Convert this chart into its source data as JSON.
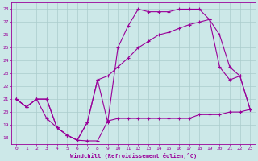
{
  "background_color": "#cce8e8",
  "grid_color": "#aacccc",
  "line_color": "#990099",
  "xlabel": "Windchill (Refroidissement éolien,°C)",
  "xlabel_color": "#990099",
  "ylim": [
    17.5,
    28.5
  ],
  "xlim": [
    -0.5,
    23.5
  ],
  "yticks": [
    18,
    19,
    20,
    21,
    22,
    23,
    24,
    25,
    26,
    27,
    28
  ],
  "xticks": [
    0,
    1,
    2,
    3,
    4,
    5,
    6,
    7,
    8,
    9,
    10,
    11,
    12,
    13,
    14,
    15,
    16,
    17,
    18,
    19,
    20,
    21,
    22,
    23
  ],
  "curve1_x": [
    0,
    1,
    2,
    3,
    4,
    5,
    6,
    7,
    8,
    9,
    10,
    11,
    12,
    13,
    14,
    15,
    16,
    17,
    18,
    19,
    20,
    21,
    22,
    23
  ],
  "curve1_y": [
    21.0,
    20.4,
    21.0,
    21.0,
    18.8,
    18.2,
    17.8,
    19.2,
    22.5,
    19.2,
    25.0,
    26.7,
    28.0,
    27.8,
    27.8,
    27.8,
    28.0,
    28.0,
    28.0,
    27.2,
    23.5,
    22.5,
    22.8,
    20.2
  ],
  "curve2_x": [
    0,
    1,
    2,
    3,
    4,
    5,
    6,
    7,
    8,
    9,
    10,
    11,
    12,
    13,
    14,
    15,
    16,
    17,
    18,
    19,
    20,
    21,
    22,
    23
  ],
  "curve2_y": [
    21.0,
    20.4,
    21.0,
    21.0,
    18.8,
    18.2,
    17.8,
    19.2,
    22.5,
    22.8,
    23.5,
    24.2,
    25.0,
    25.5,
    26.0,
    26.2,
    26.5,
    26.8,
    27.0,
    27.2,
    26.0,
    23.5,
    22.8,
    20.2
  ],
  "curve3_x": [
    0,
    1,
    2,
    3,
    4,
    5,
    6,
    7,
    8,
    9,
    10,
    11,
    12,
    13,
    14,
    15,
    16,
    17,
    18,
    19,
    20,
    21,
    22,
    23
  ],
  "curve3_y": [
    21.0,
    20.4,
    21.0,
    19.5,
    18.8,
    18.2,
    17.8,
    17.75,
    17.75,
    19.3,
    19.5,
    19.5,
    19.5,
    19.5,
    19.5,
    19.5,
    19.5,
    19.5,
    19.8,
    19.8,
    19.8,
    20.0,
    20.0,
    20.2
  ]
}
